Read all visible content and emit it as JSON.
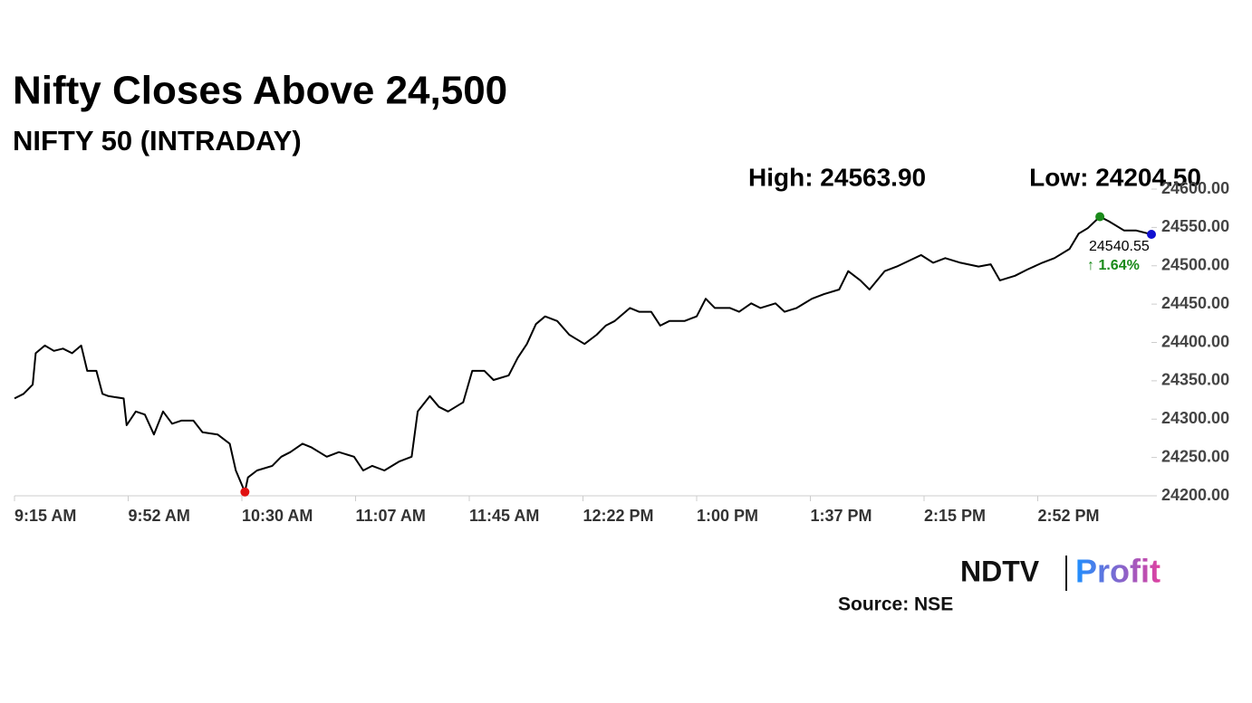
{
  "chart_data": {
    "type": "line",
    "title": "Nifty Closes Above 24,500",
    "subtitle": "NIFTY 50 (INTRADAY)",
    "high_label": "High: 24563.90",
    "low_label": "Low: 24204.50",
    "close_label": "24540.55",
    "change_label": "↑ 1.64%",
    "x": [
      555,
      558,
      561,
      562,
      565,
      568,
      571,
      574,
      577,
      579,
      582,
      584,
      586,
      591,
      592,
      595,
      598,
      601,
      604,
      607,
      610,
      614,
      617,
      622,
      626,
      628,
      631,
      632,
      635,
      640,
      643,
      646,
      650,
      653,
      658,
      662,
      667,
      670,
      673,
      677,
      682,
      686,
      688,
      692,
      695,
      698,
      703,
      706,
      710,
      713,
      718,
      721,
      724,
      727,
      730,
      734,
      738,
      743,
      747,
      750,
      753,
      758,
      761,
      765,
      768,
      771,
      776,
      780,
      783,
      786,
      791,
      794,
      798,
      801,
      806,
      809,
      813,
      818,
      822,
      827,
      830,
      834,
      837,
      842,
      846,
      854,
      858,
      862,
      867,
      873,
      877,
      880,
      885,
      889,
      894,
      898,
      903,
      906,
      909,
      913,
      916,
      921,
      925,
      930
    ],
    "series": [
      {
        "name": "NIFTY 50",
        "color": "#000000",
        "values": [
          24327,
          24333,
          24345,
          24386,
          24396,
          24389,
          24392,
          24386,
          24396,
          24363,
          24363,
          24333,
          24330,
          24327,
          24292,
          24310,
          24306,
          24280,
          24310,
          24294,
          24298,
          24298,
          24283,
          24280,
          24268,
          24233,
          24205,
          24224,
          24233,
          24239,
          24251,
          24257,
          24268,
          24263,
          24251,
          24257,
          24251,
          24233,
          24239,
          24233,
          24245,
          24251,
          24310,
          24330,
          24316,
          24310,
          24322,
          24363,
          24363,
          24351,
          24357,
          24380,
          24398,
          24424,
          24434,
          24428,
          24410,
          24398,
          24410,
          24422,
          24428,
          24445,
          24440,
          24440,
          24422,
          24428,
          24428,
          24434,
          24457,
          24445,
          24445,
          24440,
          24451,
          24445,
          24451,
          24440,
          24445,
          24457,
          24463,
          24469,
          24493,
          24481,
          24469,
          24493,
          24499,
          24514,
          24504,
          24510,
          24504,
          24499,
          24502,
          24481,
          24487,
          24495,
          24504,
          24510,
          24522,
          24542,
          24549,
          24564,
          24558,
          24546,
          24546,
          24541
        ]
      }
    ],
    "xlim": [
      555,
      930
    ],
    "xticks": [
      {
        "value": 555,
        "label": "9:15 AM"
      },
      {
        "value": 592.5,
        "label": "9:52 AM"
      },
      {
        "value": 630,
        "label": "10:30 AM"
      },
      {
        "value": 667.5,
        "label": "11:07 AM"
      },
      {
        "value": 705,
        "label": "11:45 AM"
      },
      {
        "value": 742.5,
        "label": "12:22 PM"
      },
      {
        "value": 780,
        "label": "1:00 PM"
      },
      {
        "value": 817.5,
        "label": "1:37 PM"
      },
      {
        "value": 855,
        "label": "2:15 PM"
      },
      {
        "value": 892.5,
        "label": "2:52 PM"
      }
    ],
    "ylim": [
      24200,
      24600
    ],
    "yticks": [
      {
        "value": 24200,
        "label": "24200.00"
      },
      {
        "value": 24250,
        "label": "24250.00"
      },
      {
        "value": 24300,
        "label": "24300.00"
      },
      {
        "value": 24350,
        "label": "24350.00"
      },
      {
        "value": 24400,
        "label": "24400.00"
      },
      {
        "value": 24450,
        "label": "24450.00"
      },
      {
        "value": 24500,
        "label": "24500.00"
      },
      {
        "value": 24550,
        "label": "24550.00"
      },
      {
        "value": 24600,
        "label": "24600.00"
      }
    ],
    "marker_colors": {
      "high": "#1a8a1a",
      "low": "#e01010",
      "close": "#1010d0"
    },
    "brand": [
      "NDTV",
      "Profit"
    ],
    "source": "Source: NSE"
  }
}
